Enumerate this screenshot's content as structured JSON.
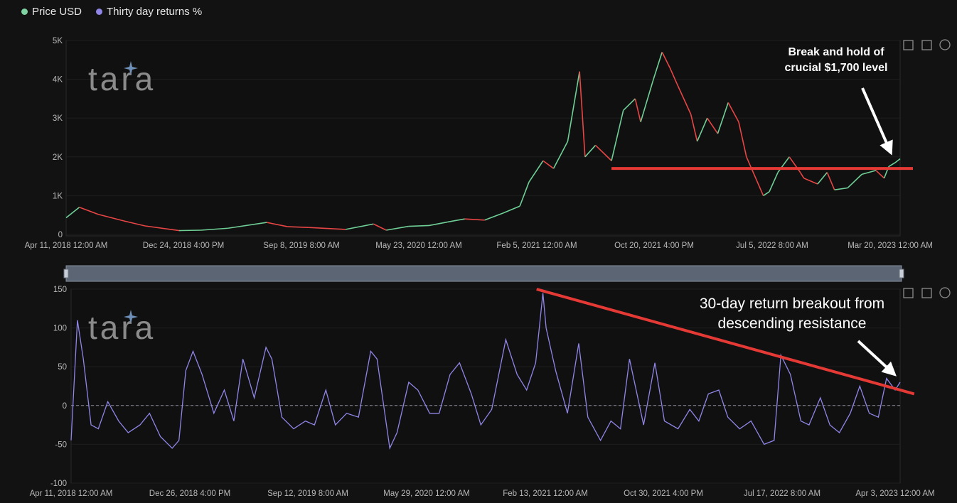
{
  "legend": {
    "items": [
      {
        "label": "Price USD",
        "color": "#7fd3a0"
      },
      {
        "label": "Thirty day returns %",
        "color": "#8f86e8"
      }
    ]
  },
  "watermark": {
    "text": "tara"
  },
  "toolbar_icons": [
    "zoom-icon",
    "restore-icon",
    "refresh-icon"
  ],
  "colors": {
    "up": "#6fcf97",
    "down": "#e84545",
    "returns": "#8f86e8",
    "trendline": "#e53935",
    "annotation": "#ffffff"
  },
  "chart_data": [
    {
      "type": "line",
      "series": [
        {
          "name": "Price USD",
          "x": [
            "2018-04-11",
            "2018-05-10",
            "2018-06-20",
            "2018-08-15",
            "2018-10-01",
            "2018-12-15",
            "2019-02-01",
            "2019-04-01",
            "2019-06-25",
            "2019-08-10",
            "2019-09-25",
            "2019-12-15",
            "2020-02-14",
            "2020-03-13",
            "2020-05-01",
            "2020-06-15",
            "2020-07-25",
            "2020-09-01",
            "2020-10-15",
            "2020-11-24",
            "2020-12-31",
            "2021-01-20",
            "2021-02-20",
            "2021-03-15",
            "2021-04-15",
            "2021-05-11",
            "2021-05-23",
            "2021-06-15",
            "2021-07-20",
            "2021-08-15",
            "2021-09-10",
            "2021-09-22",
            "2021-10-20",
            "2021-11-08",
            "2021-11-25",
            "2021-12-10",
            "2022-01-10",
            "2022-01-24",
            "2022-02-15",
            "2022-03-10",
            "2022-04-02",
            "2022-04-25",
            "2022-05-12",
            "2022-06-18",
            "2022-07-01",
            "2022-07-20",
            "2022-08-14",
            "2022-09-07",
            "2022-09-15",
            "2022-10-15",
            "2022-11-05",
            "2022-11-21",
            "2022-12-20",
            "2023-01-20",
            "2023-02-20",
            "2023-03-10",
            "2023-03-20",
            "2023-04-03",
            "2023-04-14"
          ],
          "y": [
            430,
            700,
            520,
            350,
            220,
            100,
            110,
            160,
            310,
            200,
            180,
            130,
            270,
            110,
            210,
            230,
            320,
            400,
            370,
            550,
            730,
            1350,
            1900,
            1700,
            2400,
            4200,
            2000,
            2300,
            1900,
            3200,
            3500,
            2900,
            4000,
            4700,
            4300,
            3900,
            3100,
            2400,
            3000,
            2600,
            3400,
            2900,
            2000,
            1000,
            1100,
            1600,
            2000,
            1600,
            1450,
            1300,
            1600,
            1150,
            1200,
            1550,
            1650,
            1450,
            1750,
            1850,
            1950
          ]
        }
      ],
      "xtick_labels": [
        "Apr 11, 2018 12:00 AM",
        "Dec 24, 2018 4:00 PM",
        "Sep 8, 2019 8:00 AM",
        "May 23, 2020 12:00 AM",
        "Feb 5, 2021 12:00 AM",
        "Oct 20, 2021 4:00 PM",
        "Jul 5, 2022 8:00 AM",
        "Mar 20, 2023 12:00 AM"
      ],
      "yticks": [
        {
          "value": 0,
          "label": "0"
        },
        {
          "value": 1000,
          "label": "1K"
        },
        {
          "value": 2000,
          "label": "2K"
        },
        {
          "value": 3000,
          "label": "3K"
        },
        {
          "value": 4000,
          "label": "4K"
        },
        {
          "value": 5000,
          "label": "5K"
        }
      ],
      "ylim": [
        0,
        5000
      ],
      "xlim": [
        "2018-04-11",
        "2023-04-14"
      ],
      "horizontal_line": {
        "value": 1700,
        "from": "2021-07-20",
        "to": "2023-04-14"
      },
      "annotations": [
        {
          "text": "Break and hold of"
        },
        {
          "text": "crucial $1,700 level"
        }
      ]
    },
    {
      "type": "line",
      "series": [
        {
          "name": "Thirty day returns %",
          "x": [
            "2018-04-11",
            "2018-04-25",
            "2018-05-08",
            "2018-05-25",
            "2018-06-10",
            "2018-07-01",
            "2018-07-25",
            "2018-08-15",
            "2018-09-10",
            "2018-10-01",
            "2018-10-25",
            "2018-11-20",
            "2018-12-05",
            "2018-12-20",
            "2019-01-05",
            "2019-01-25",
            "2019-02-20",
            "2019-03-15",
            "2019-04-05",
            "2019-04-25",
            "2019-05-20",
            "2019-06-15",
            "2019-06-28",
            "2019-07-20",
            "2019-08-15",
            "2019-09-10",
            "2019-09-30",
            "2019-10-25",
            "2019-11-15",
            "2019-12-10",
            "2020-01-05",
            "2020-02-01",
            "2020-02-15",
            "2020-03-14",
            "2020-03-30",
            "2020-04-25",
            "2020-05-15",
            "2020-06-10",
            "2020-07-01",
            "2020-07-25",
            "2020-08-15",
            "2020-09-10",
            "2020-10-01",
            "2020-10-25",
            "2020-11-25",
            "2020-12-20",
            "2021-01-10",
            "2021-01-30",
            "2021-02-15",
            "2021-02-22",
            "2021-03-15",
            "2021-04-10",
            "2021-05-05",
            "2021-05-25",
            "2021-06-22",
            "2021-07-15",
            "2021-08-05",
            "2021-08-25",
            "2021-09-25",
            "2021-10-20",
            "2021-11-10",
            "2021-12-10",
            "2022-01-05",
            "2022-01-25",
            "2022-02-15",
            "2022-03-10",
            "2022-03-30",
            "2022-04-25",
            "2022-05-20",
            "2022-06-18",
            "2022-07-10",
            "2022-07-25",
            "2022-08-15",
            "2022-09-07",
            "2022-09-25",
            "2022-10-20",
            "2022-11-10",
            "2022-12-01",
            "2022-12-25",
            "2023-01-15",
            "2023-02-05",
            "2023-02-25",
            "2023-03-15",
            "2023-04-03",
            "2023-04-14"
          ],
          "y": [
            -45,
            110,
            60,
            -25,
            -30,
            5,
            -20,
            -35,
            -25,
            -10,
            -40,
            -55,
            -45,
            45,
            70,
            40,
            -10,
            20,
            -20,
            60,
            10,
            75,
            60,
            -15,
            -30,
            -20,
            -25,
            20,
            -25,
            -10,
            -15,
            70,
            60,
            -55,
            -35,
            30,
            20,
            -10,
            -10,
            40,
            55,
            15,
            -25,
            -5,
            85,
            40,
            20,
            55,
            145,
            100,
            45,
            -10,
            80,
            -15,
            -45,
            -20,
            -30,
            60,
            -25,
            55,
            -20,
            -30,
            -5,
            -20,
            15,
            20,
            -15,
            -30,
            -20,
            -50,
            -45,
            65,
            40,
            -20,
            -25,
            10,
            -25,
            -35,
            -10,
            25,
            -10,
            -15,
            35,
            20,
            30
          ],
          "color": "#8f86e8"
        }
      ],
      "xtick_labels": [
        "Apr 11, 2018 12:00 AM",
        "Dec 26, 2018 4:00 PM",
        "Sep 12, 2019 8:00 AM",
        "May 29, 2020 12:00 AM",
        "Feb 13, 2021 12:00 AM",
        "Oct 30, 2021 4:00 PM",
        "Jul 17, 2022 8:00 AM",
        "Apr 3, 2023 12:00 AM"
      ],
      "yticks": [
        {
          "value": -100,
          "label": "-100"
        },
        {
          "value": -50,
          "label": "-50"
        },
        {
          "value": 0,
          "label": "0"
        },
        {
          "value": 50,
          "label": "50"
        },
        {
          "value": 100,
          "label": "100"
        },
        {
          "value": 150,
          "label": "150"
        }
      ],
      "ylim": [
        -100,
        150
      ],
      "xlim": [
        "2018-04-11",
        "2023-04-14"
      ],
      "zero_line": true,
      "trendline": {
        "from": [
          "2021-02-01",
          150
        ],
        "to": [
          "2023-05-15",
          15
        ]
      },
      "annotations": [
        {
          "text": "30-day return breakout from"
        },
        {
          "text": "descending resistance"
        }
      ]
    }
  ]
}
